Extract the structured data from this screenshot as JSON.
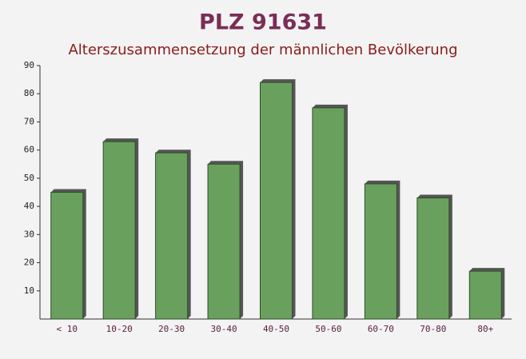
{
  "chart_data": {
    "type": "bar",
    "title": "PLZ 91631",
    "subtitle": "Alterszusammensetzung der männlichen Bevölkerung",
    "categories": [
      "< 10",
      "10-20",
      "20-30",
      "30-40",
      "40-50",
      "50-60",
      "60-70",
      "70-80",
      "80+"
    ],
    "values": [
      45,
      63,
      59,
      55,
      84,
      75,
      48,
      43,
      17
    ],
    "color": "#6aa05e",
    "ylim": [
      0,
      90
    ],
    "yticks": [
      10,
      20,
      30,
      40,
      50,
      60,
      70,
      80,
      90
    ],
    "grid": false
  }
}
